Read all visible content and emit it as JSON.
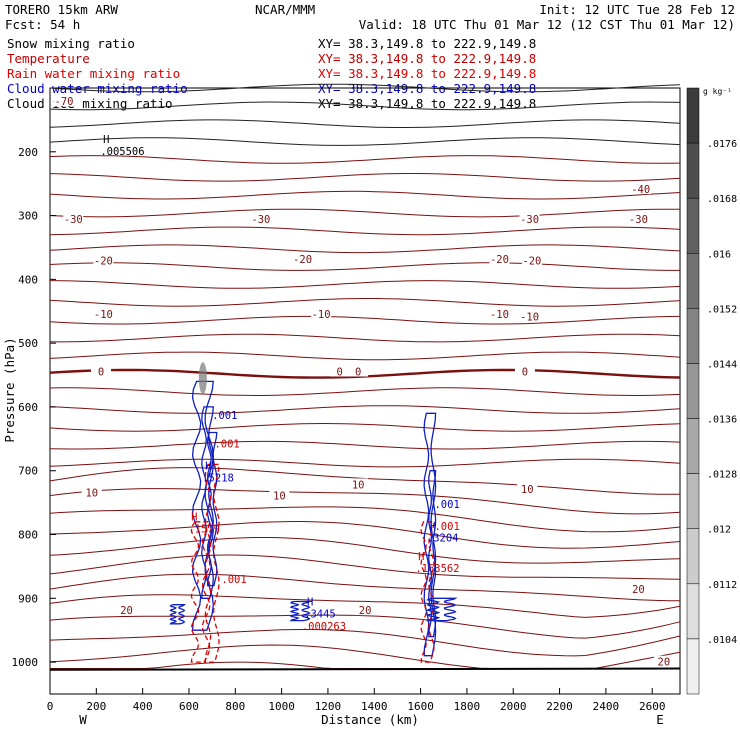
{
  "header": {
    "left_line1": "TORERO  15km ARW",
    "left_line2": "Fcst:   54 h",
    "center": "NCAR/MMM",
    "init": "Init: 12 UTC Tue 28 Feb 12",
    "valid": "Valid: 18 UTC Thu 01 Mar 12 (12 CST Thu 01 Mar 12)",
    "fields": [
      {
        "label": "Snow mixing ratio",
        "xy": "XY=  38.3,149.8 to 222.9,149.8",
        "color": "#000000"
      },
      {
        "label": "Temperature",
        "xy": "XY=  38.3,149.8 to 222.9,149.8",
        "color": "#c00000"
      },
      {
        "label": "Rain water mixing ratio",
        "xy": "XY=  38.3,149.8 to 222.9,149.8",
        "color": "#e00000"
      },
      {
        "label": "Cloud water mixing ratio",
        "xy": "XY=  38.3,149.8 to 222.9,149.8",
        "color": "#0000c8"
      },
      {
        "label": "Cloud ice mixing ratio",
        "xy": "XY=  38.3,149.8 to 222.9,149.8",
        "color": "#000000"
      }
    ]
  },
  "chart_data": {
    "type": "contour-cross-section",
    "xlabel": "Distance (km)",
    "ylabel": "Pressure (hPa)",
    "xlim": [
      0,
      2720
    ],
    "ylim": [
      1050,
      100
    ],
    "x_ticks": [
      0,
      200,
      400,
      600,
      800,
      1000,
      1200,
      1400,
      1600,
      1800,
      2000,
      2200,
      2400,
      2600
    ],
    "y_ticks": [
      200,
      300,
      400,
      500,
      600,
      700,
      800,
      900,
      1000
    ],
    "x_end_labels": {
      "left": "W",
      "right": "E"
    },
    "colorbar": {
      "unit": "g kg⁻¹",
      "labels": [
        ".0176",
        ".0168",
        ".016",
        ".0152",
        ".0144",
        ".0136",
        ".0128",
        ".012",
        ".0112",
        ".0104"
      ]
    },
    "temperature_labels": [
      {
        "text": "-70",
        "x": 0,
        "p": 122
      },
      {
        "text": "-40",
        "x": 2490,
        "p": 260
      },
      {
        "text": "-30",
        "x": 40,
        "p": 307
      },
      {
        "text": "-30",
        "x": 850,
        "p": 307
      },
      {
        "text": "-30",
        "x": 2010,
        "p": 307
      },
      {
        "text": "-30",
        "x": 2480,
        "p": 307
      },
      {
        "text": "-20",
        "x": 170,
        "p": 372
      },
      {
        "text": "-20",
        "x": 1030,
        "p": 370
      },
      {
        "text": "-20",
        "x": 1880,
        "p": 370
      },
      {
        "text": "-20",
        "x": 2020,
        "p": 372
      },
      {
        "text": "-10",
        "x": 170,
        "p": 456
      },
      {
        "text": "-10",
        "x": 1110,
        "p": 456
      },
      {
        "text": "-10",
        "x": 1880,
        "p": 456
      },
      {
        "text": "-10",
        "x": 2010,
        "p": 460
      },
      {
        "text": "0",
        "x": 160,
        "p": 546
      },
      {
        "text": "0",
        "x": 1190,
        "p": 546
      },
      {
        "text": "0",
        "x": 1270,
        "p": 546
      },
      {
        "text": "0",
        "x": 1990,
        "p": 546
      },
      {
        "text": "10",
        "x": 120,
        "p": 736
      },
      {
        "text": "10",
        "x": 930,
        "p": 740
      },
      {
        "text": "10",
        "x": 1270,
        "p": 723
      },
      {
        "text": "10",
        "x": 2000,
        "p": 730
      },
      {
        "text": "20",
        "x": 270,
        "p": 920
      },
      {
        "text": "20",
        "x": 1300,
        "p": 920
      },
      {
        "text": "20",
        "x": 2480,
        "p": 887
      },
      {
        "text": "20",
        "x": 2590,
        "p": 1001
      }
    ],
    "high_labels": [
      {
        "h": "H",
        "value": ".005506",
        "x": 200,
        "p": 200,
        "color": "#000000"
      },
      {
        "h": "H",
        "value": ".5218",
        "x": 640,
        "p": 712,
        "color": "#0000c8"
      },
      {
        "h": "H",
        "value": ".1579",
        "x": 580,
        "p": 792,
        "color": "#d00000"
      },
      {
        "h": "H",
        "value": ".3204",
        "x": 1610,
        "p": 806,
        "color": "#0000c8"
      },
      {
        "h": "H",
        "value": ".163562",
        "x": 1560,
        "p": 854,
        "color": "#d00000"
      },
      {
        "h": "H",
        "value": ".3445",
        "x": 1080,
        "p": 925,
        "color": "#0000c8"
      },
      {
        "h": "",
        "value": ".000263",
        "x": 1070,
        "p": 945,
        "color": "#d00000"
      }
    ],
    "contour_value_labels": [
      {
        "text": ".001",
        "x": 700,
        "p": 614,
        "color": "#0000c8"
      },
      {
        "text": ".001",
        "x": 710,
        "p": 659,
        "color": "#d00000"
      },
      {
        "text": ".001",
        "x": 740,
        "p": 871,
        "color": "#d00000"
      },
      {
        "text": ".001",
        "x": 1660,
        "p": 754,
        "color": "#0000c8"
      },
      {
        "text": ".001",
        "x": 1660,
        "p": 788,
        "color": "#d00000"
      }
    ]
  }
}
